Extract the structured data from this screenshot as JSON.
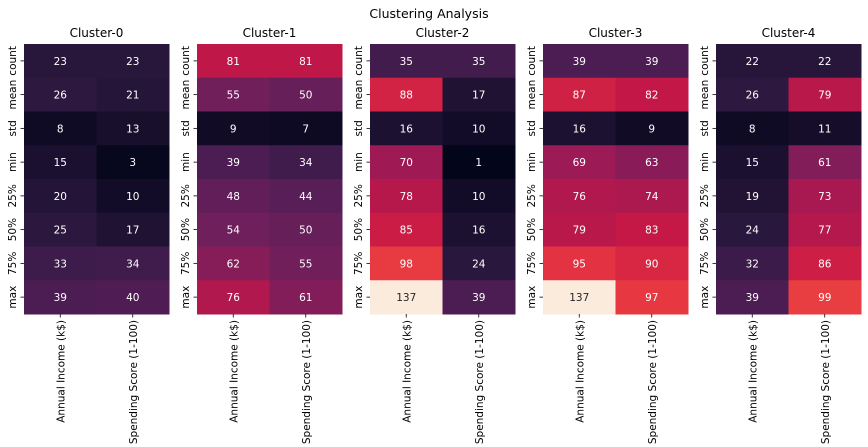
{
  "chart_data": {
    "type": "heatmap",
    "title": "Clustering Analysis",
    "rows": [
      "count",
      "mean",
      "std",
      "min",
      "25%",
      "50%",
      "75%",
      "max"
    ],
    "columns": [
      "Annual Income (k$)",
      "Spending Score (1-100)"
    ],
    "value_range": [
      1,
      137
    ],
    "colormap": "rocket",
    "colorbar": false,
    "panels": [
      {
        "title": "Cluster-0",
        "values": [
          [
            23,
            23
          ],
          [
            26,
            21
          ],
          [
            8,
            13
          ],
          [
            15,
            3
          ],
          [
            20,
            10
          ],
          [
            25,
            17
          ],
          [
            33,
            34
          ],
          [
            39,
            40
          ]
        ]
      },
      {
        "title": "Cluster-1",
        "values": [
          [
            81,
            81
          ],
          [
            55,
            50
          ],
          [
            9,
            7
          ],
          [
            39,
            34
          ],
          [
            48,
            44
          ],
          [
            54,
            50
          ],
          [
            62,
            55
          ],
          [
            76,
            61
          ]
        ]
      },
      {
        "title": "Cluster-2",
        "values": [
          [
            35,
            35
          ],
          [
            88,
            17
          ],
          [
            16,
            10
          ],
          [
            70,
            1
          ],
          [
            78,
            10
          ],
          [
            85,
            16
          ],
          [
            98,
            24
          ],
          [
            137,
            39
          ]
        ]
      },
      {
        "title": "Cluster-3",
        "values": [
          [
            39,
            39
          ],
          [
            87,
            82
          ],
          [
            16,
            9
          ],
          [
            69,
            63
          ],
          [
            76,
            74
          ],
          [
            79,
            83
          ],
          [
            95,
            90
          ],
          [
            137,
            97
          ]
        ]
      },
      {
        "title": "Cluster-4",
        "values": [
          [
            22,
            22
          ],
          [
            26,
            79
          ],
          [
            8,
            11
          ],
          [
            15,
            61
          ],
          [
            19,
            73
          ],
          [
            24,
            77
          ],
          [
            32,
            86
          ],
          [
            39,
            99
          ]
        ]
      }
    ]
  }
}
